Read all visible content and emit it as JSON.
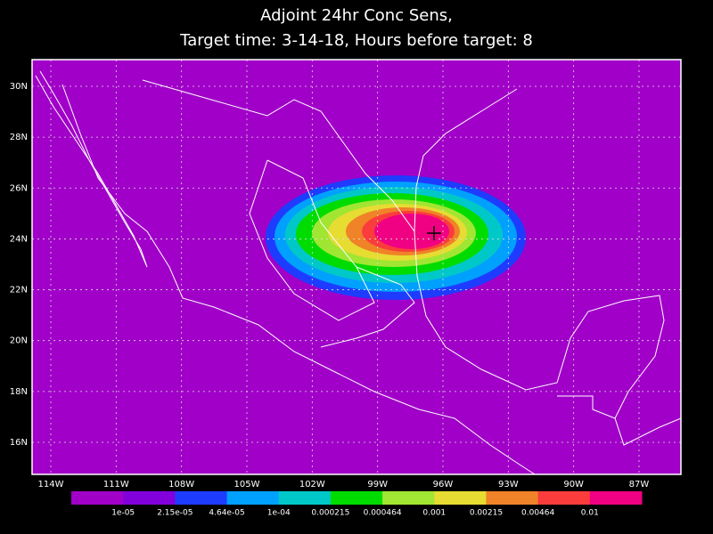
{
  "title": [
    "Adjoint 24hr Conc Sens,",
    "Target time: 3-14-18, Hours before target: 8"
  ],
  "map": {
    "lat_ticks": [
      {
        "value": 30,
        "label": "30N"
      },
      {
        "value": 28,
        "label": "28N"
      },
      {
        "value": 26,
        "label": "26N"
      },
      {
        "value": 24,
        "label": "24N"
      },
      {
        "value": 22,
        "label": "22N"
      },
      {
        "value": 20,
        "label": "20N"
      },
      {
        "value": 18,
        "label": "18N"
      },
      {
        "value": 16,
        "label": "16N"
      }
    ],
    "lon_ticks": [
      {
        "value": -114,
        "label": "114W"
      },
      {
        "value": -111,
        "label": "111W"
      },
      {
        "value": -108,
        "label": "108W"
      },
      {
        "value": -105,
        "label": "105W"
      },
      {
        "value": -102,
        "label": "102W"
      },
      {
        "value": -99,
        "label": "99W"
      },
      {
        "value": -96,
        "label": "96W"
      },
      {
        "value": -93,
        "label": "93W"
      },
      {
        "value": -90,
        "label": "90W"
      },
      {
        "value": -87,
        "label": "87W"
      }
    ]
  },
  "colorbar": {
    "colors": [
      "#a000c8",
      "#8200dc",
      "#1e3cff",
      "#00a0ff",
      "#00c8c8",
      "#00dc00",
      "#a0e632",
      "#e6dc32",
      "#f08228",
      "#fa3c3c",
      "#f00082"
    ],
    "labels": [
      "1e-05",
      "2.15e-05",
      "4.64e-05",
      "1e-04",
      "0.000215",
      "0.000464",
      "0.001",
      "0.00215",
      "0.00464",
      "0.01"
    ]
  }
}
